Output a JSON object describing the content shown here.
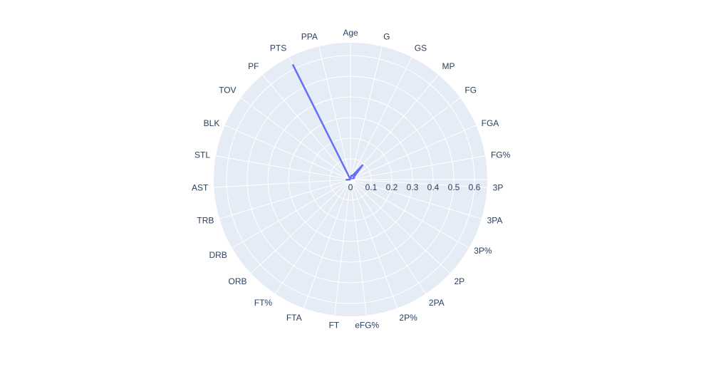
{
  "chart_data": {
    "type": "radar",
    "categories": [
      "Age",
      "G",
      "GS",
      "MP",
      "FG",
      "FGA",
      "FG%",
      "3P",
      "3PA",
      "3P%",
      "2P",
      "2PA",
      "2P%",
      "eFG%",
      "FT",
      "FTA",
      "FT%",
      "ORB",
      "DRB",
      "TRB",
      "AST",
      "STL",
      "BLK",
      "TOV",
      "PF",
      "PTS",
      "PPA"
    ],
    "radial_ticks": [
      "0",
      "0.1",
      "0.2",
      "0.3",
      "0.4",
      "0.5",
      "0.6"
    ],
    "radial_range": [
      0,
      0.6
    ],
    "series": [
      {
        "values": [
          0.005,
          0.02,
          0.02,
          0.09,
          0.02,
          0.02,
          0.0,
          0.0,
          0.0,
          0.0,
          0.0,
          0.0,
          0.0,
          0.0,
          0.0,
          0.0,
          0.0,
          0.0,
          0.0,
          0.0,
          0.02,
          0.0,
          0.0,
          0.0,
          0.0,
          0.62,
          0.0
        ],
        "color": "#636efa"
      }
    ],
    "grid": true,
    "bgcolor": "#e5ecf6",
    "gridcolor": "#ffffff",
    "legend": "none"
  }
}
